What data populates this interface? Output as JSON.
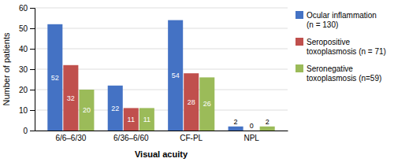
{
  "chart_data": {
    "type": "bar",
    "categories": [
      "6/6–6/30",
      "6/36–6/60",
      "CF-PL",
      "NPL"
    ],
    "series": [
      {
        "name": "Ocular inflammation\n(n = 130)",
        "color": "#4472C4",
        "values": [
          52,
          22,
          54,
          2
        ]
      },
      {
        "name": "Seropositive\ntoxoplasmosis (n = 71)",
        "color": "#C0504D",
        "values": [
          32,
          11,
          28,
          0
        ]
      },
      {
        "name": "Seronegative\ntoxoplasmosis (n=59)",
        "color": "#9BBB59",
        "values": [
          20,
          11,
          26,
          2
        ]
      }
    ],
    "ylabel": "Number of patients",
    "xlabel": "Visual acuity",
    "ylim": [
      0,
      60
    ],
    "yticks": [
      0,
      10,
      20,
      30,
      40,
      50,
      60
    ],
    "grid": true,
    "legend": "right",
    "data_labels": true
  }
}
